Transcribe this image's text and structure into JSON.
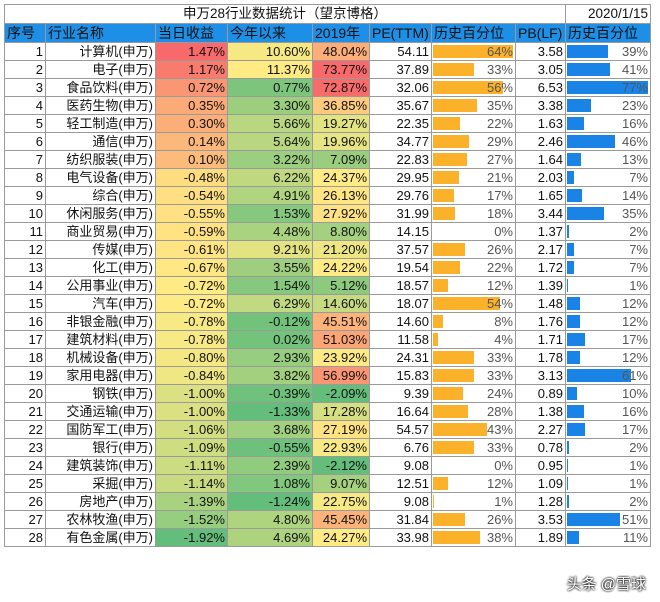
{
  "title": "申万28行业数据统计（望京博格）",
  "date": "2020/1/15",
  "headers": [
    "序号",
    "行业名称",
    "当日收益",
    "今年以来",
    "2019年",
    "PE(TTM)",
    "历史百分位",
    "PB(LF)",
    "历史百分位"
  ],
  "colors": {
    "header": "#1e8fe6",
    "pe_bar": "#fbb22a",
    "pb_bar": "#1a84e6",
    "red": "#f8696b",
    "yellow": "#ffeb84",
    "green": "#63be7b"
  },
  "rows": [
    [
      "1",
      "计算机(申万)",
      "1.47%",
      "10.60%",
      "48.04%",
      "54.11",
      "64%",
      "3.58",
      "39%"
    ],
    [
      "2",
      "电子(申万)",
      "1.17%",
      "11.37%",
      "73.77%",
      "37.89",
      "33%",
      "3.05",
      "41%"
    ],
    [
      "3",
      "食品饮料(申万)",
      "0.72%",
      "0.77%",
      "72.87%",
      "32.06",
      "56%",
      "6.53",
      "77%"
    ],
    [
      "4",
      "医药生物(申万)",
      "0.35%",
      "3.30%",
      "36.85%",
      "35.67",
      "35%",
      "3.38",
      "23%"
    ],
    [
      "5",
      "轻工制造(申万)",
      "0.30%",
      "5.66%",
      "19.27%",
      "22.35",
      "22%",
      "1.63",
      "16%"
    ],
    [
      "6",
      "通信(申万)",
      "0.14%",
      "5.64%",
      "19.96%",
      "34.77",
      "29%",
      "2.46",
      "46%"
    ],
    [
      "7",
      "纺织服装(申万)",
      "0.10%",
      "3.22%",
      "7.09%",
      "22.83",
      "27%",
      "1.64",
      "13%"
    ],
    [
      "8",
      "电气设备(申万)",
      "-0.48%",
      "6.22%",
      "24.37%",
      "29.95",
      "21%",
      "2.03",
      "7%"
    ],
    [
      "9",
      "综合(申万)",
      "-0.54%",
      "4.91%",
      "26.13%",
      "29.76",
      "17%",
      "1.65",
      "14%"
    ],
    [
      "10",
      "休闲服务(申万)",
      "-0.55%",
      "1.53%",
      "27.92%",
      "31.99",
      "18%",
      "3.44",
      "35%"
    ],
    [
      "11",
      "商业贸易(申万)",
      "-0.59%",
      "4.48%",
      "8.80%",
      "14.15",
      "0%",
      "1.37",
      "2%"
    ],
    [
      "12",
      "传媒(申万)",
      "-0.61%",
      "9.21%",
      "21.20%",
      "37.57",
      "26%",
      "2.17",
      "7%"
    ],
    [
      "13",
      "化工(申万)",
      "-0.67%",
      "3.55%",
      "24.22%",
      "19.54",
      "22%",
      "1.72",
      "7%"
    ],
    [
      "14",
      "公用事业(申万)",
      "-0.72%",
      "1.54%",
      "5.12%",
      "18.57",
      "12%",
      "1.39",
      "1%"
    ],
    [
      "15",
      "汽车(申万)",
      "-0.72%",
      "6.29%",
      "14.60%",
      "18.07",
      "54%",
      "1.48",
      "12%"
    ],
    [
      "16",
      "非银金融(申万)",
      "-0.78%",
      "-0.12%",
      "45.51%",
      "14.60",
      "8%",
      "1.76",
      "12%"
    ],
    [
      "17",
      "建筑材料(申万)",
      "-0.78%",
      "0.02%",
      "51.03%",
      "11.58",
      "4%",
      "1.71",
      "17%"
    ],
    [
      "18",
      "机械设备(申万)",
      "-0.80%",
      "2.93%",
      "23.92%",
      "24.31",
      "33%",
      "1.78",
      "12%"
    ],
    [
      "19",
      "家用电器(申万)",
      "-0.84%",
      "3.82%",
      "56.99%",
      "15.83",
      "33%",
      "3.13",
      "61%"
    ],
    [
      "20",
      "钢铁(申万)",
      "-1.00%",
      "-0.39%",
      "-2.09%",
      "9.39",
      "24%",
      "0.89",
      "10%"
    ],
    [
      "21",
      "交通运输(申万)",
      "-1.00%",
      "-1.33%",
      "17.28%",
      "16.64",
      "28%",
      "1.38",
      "16%"
    ],
    [
      "22",
      "国防军工(申万)",
      "-1.06%",
      "3.68%",
      "27.19%",
      "54.57",
      "43%",
      "2.27",
      "17%"
    ],
    [
      "23",
      "银行(申万)",
      "-1.09%",
      "-0.55%",
      "22.93%",
      "6.76",
      "33%",
      "0.78",
      "2%"
    ],
    [
      "24",
      "建筑装饰(申万)",
      "-1.11%",
      "2.39%",
      "-2.12%",
      "9.08",
      "0%",
      "0.95",
      "1%"
    ],
    [
      "25",
      "采掘(申万)",
      "-1.14%",
      "1.08%",
      "9.07%",
      "12.51",
      "12%",
      "1.09",
      "1%"
    ],
    [
      "26",
      "房地产(申万)",
      "-1.39%",
      "-1.24%",
      "22.75%",
      "9.08",
      "1%",
      "1.28",
      "2%"
    ],
    [
      "27",
      "农林牧渔(申万)",
      "-1.52%",
      "4.80%",
      "45.45%",
      "31.84",
      "26%",
      "3.53",
      "51%"
    ],
    [
      "28",
      "有色金属(申万)",
      "-1.92%",
      "4.69%",
      "24.27%",
      "33.98",
      "38%",
      "1.89",
      "11%"
    ]
  ],
  "watermark": "头条 @雪球"
}
